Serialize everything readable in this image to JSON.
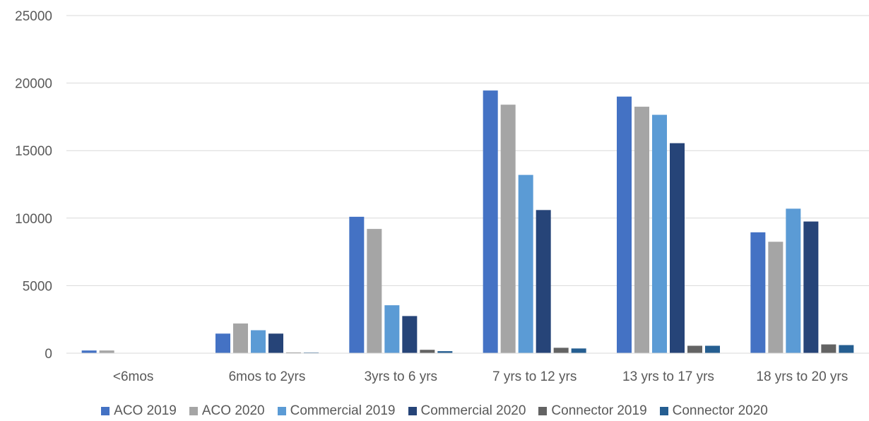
{
  "chart_data": {
    "type": "bar",
    "title": "",
    "xlabel": "",
    "ylabel": "",
    "ylim": [
      0,
      25000
    ],
    "yticks": [
      0,
      5000,
      10000,
      15000,
      20000,
      25000
    ],
    "grid": true,
    "legend_position": "bottom",
    "categories": [
      "<6mos",
      "6mos to 2yrs",
      "3yrs to 6 yrs",
      "7 yrs to 12 yrs",
      "13 yrs to 17 yrs",
      "18 yrs to 20 yrs"
    ],
    "series": [
      {
        "name": "ACO 2019",
        "color": "#4472C4",
        "values": [
          200,
          1450,
          10100,
          19450,
          19000,
          8950
        ]
      },
      {
        "name": "ACO 2020",
        "color": "#A5A5A5",
        "values": [
          200,
          2200,
          9200,
          18400,
          18250,
          8250
        ]
      },
      {
        "name": "Commercial 2019",
        "color": "#5B9BD5",
        "values": [
          0,
          1700,
          3550,
          13200,
          17650,
          10700
        ]
      },
      {
        "name": "Commercial 2020",
        "color": "#264478",
        "values": [
          0,
          1450,
          2750,
          10600,
          15550,
          9750
        ]
      },
      {
        "name": "Connector 2019",
        "color": "#636363",
        "values": [
          0,
          50,
          250,
          400,
          550,
          650
        ]
      },
      {
        "name": "Connector 2020",
        "color": "#255E91",
        "values": [
          0,
          50,
          150,
          350,
          550,
          600
        ]
      }
    ]
  }
}
